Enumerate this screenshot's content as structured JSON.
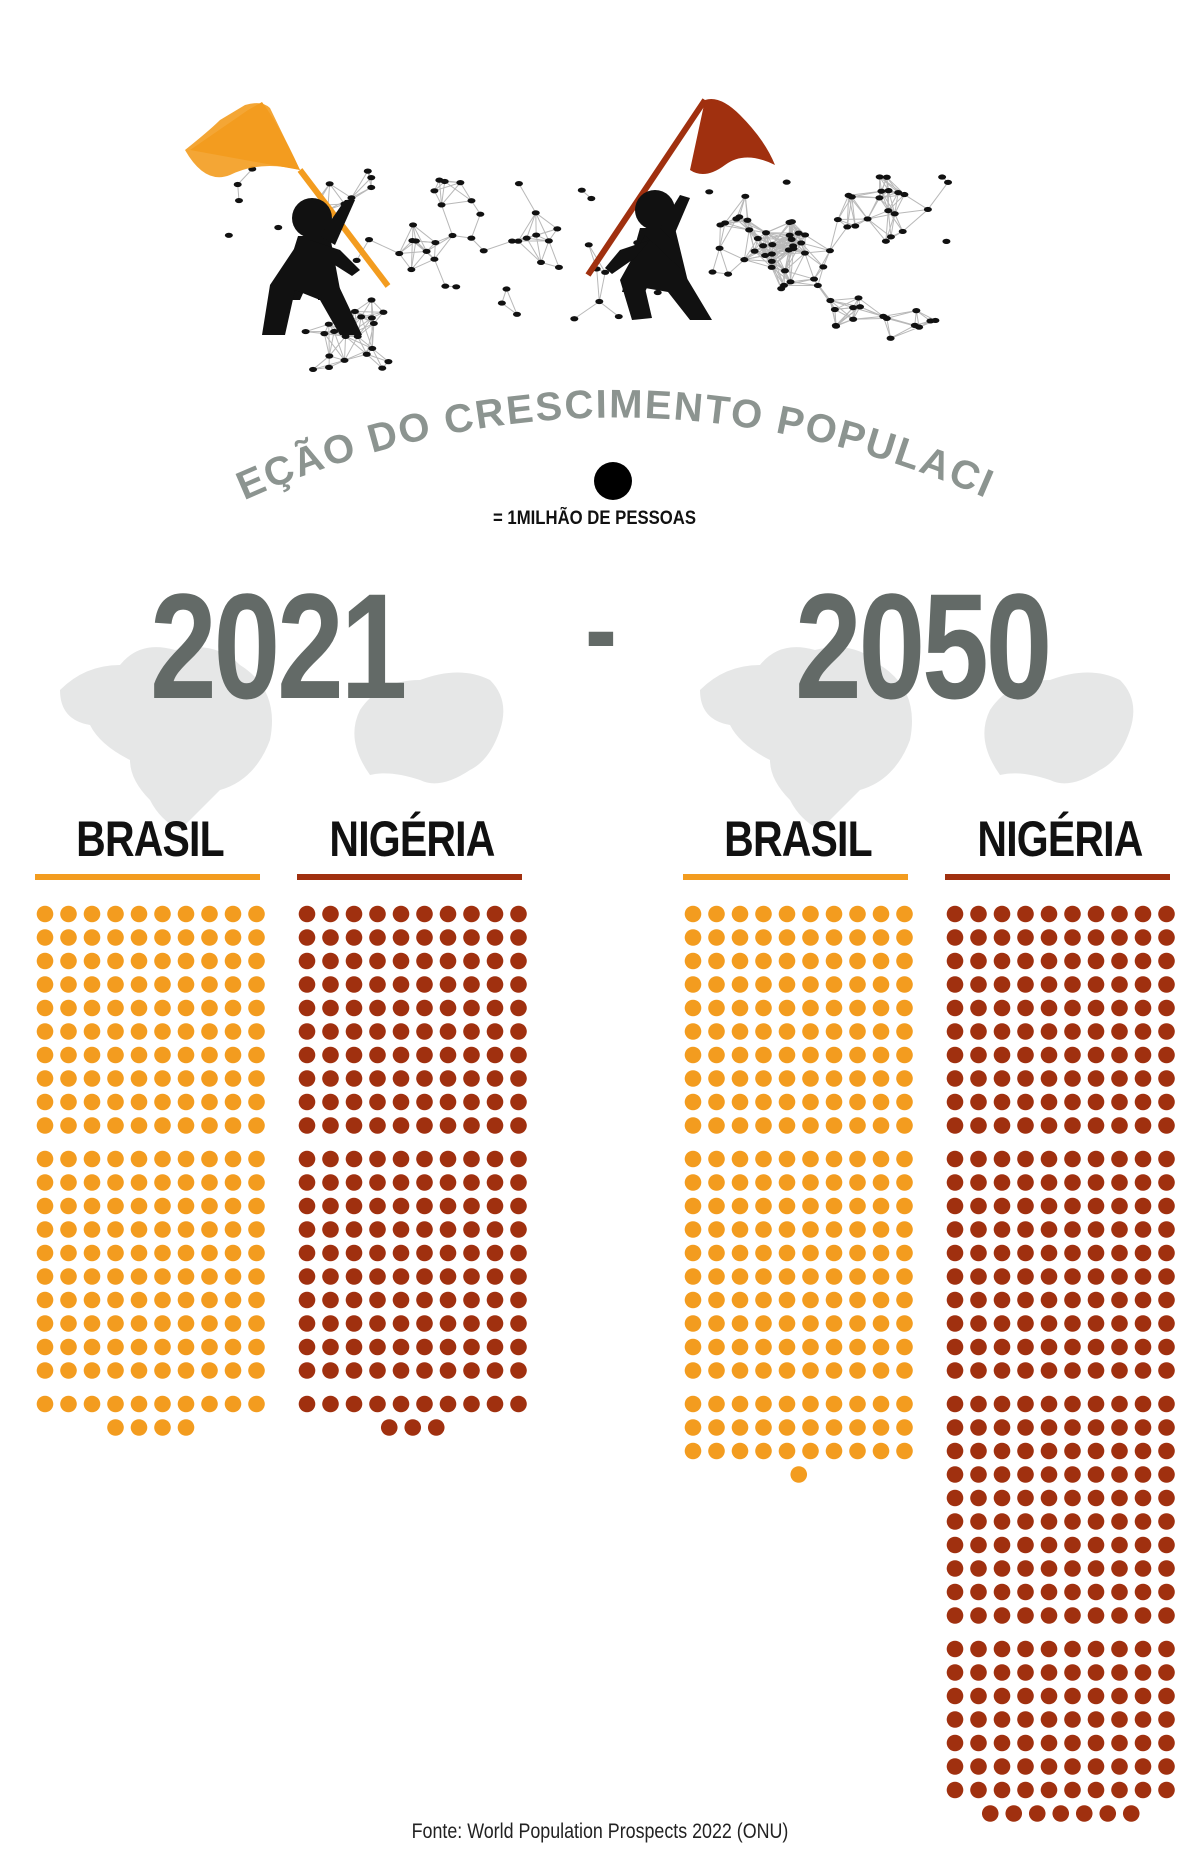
{
  "title": "PROJEÇÃO DO CRESCIMENTO POPULACIONAL",
  "legend": {
    "text": "= 1MILHÃO DE PESSOAS",
    "unit_value": 1,
    "unit": "milhão de pessoas"
  },
  "separator": "-",
  "source": "Fonte: World Population Prospects 2022 (ONU)",
  "colors": {
    "brasil": "#f39c1f",
    "nigeria": "#a0300f",
    "year": "#636a67",
    "title": "#8c9490",
    "map": "#e6e7e7"
  },
  "icons": [
    "flag-orange-icon",
    "flag-red-icon",
    "person-icon",
    "network-map-icon",
    "brazil-map-icon",
    "nigeria-map-icon"
  ],
  "chart_data": {
    "type": "unit-dot",
    "title": "PROJEÇÃO DO CRESCIMENTO POPULACIONAL",
    "unit": "1 milhão de pessoas por ponto",
    "dots_per_row": 10,
    "years": [
      "2021",
      "2050"
    ],
    "groups": [
      {
        "year": "2021",
        "country": "BRASIL",
        "color": "#f39c1f",
        "value": 214
      },
      {
        "year": "2021",
        "country": "NIGÉRIA",
        "color": "#a0300f",
        "value": 213
      },
      {
        "year": "2050",
        "country": "BRASIL",
        "color": "#f39c1f",
        "value": 231
      },
      {
        "year": "2050",
        "country": "NIGÉRIA",
        "color": "#a0300f",
        "value": 377
      }
    ]
  }
}
